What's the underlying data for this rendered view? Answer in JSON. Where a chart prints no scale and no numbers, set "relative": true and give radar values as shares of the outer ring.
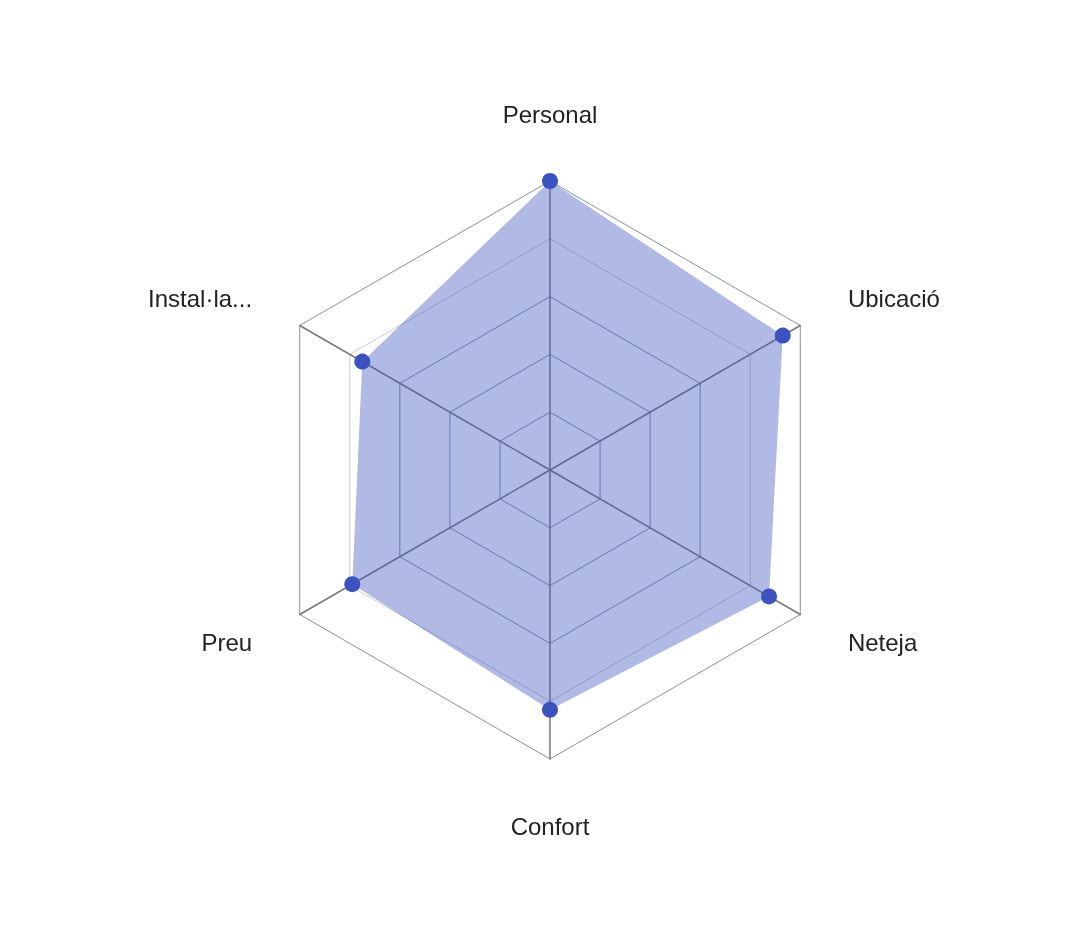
{
  "chart_data": {
    "type": "radar",
    "relative": true,
    "grid": true,
    "marker": "circle",
    "categories": [
      "Personal",
      "Ubicació",
      "Neteja",
      "Confort",
      "Preu",
      "Instal·la..."
    ],
    "series": [
      {
        "color": "#3b52bf",
        "values": [
          1.0,
          0.93,
          0.875,
          0.83,
          0.79,
          0.75
        ]
      }
    ]
  }
}
